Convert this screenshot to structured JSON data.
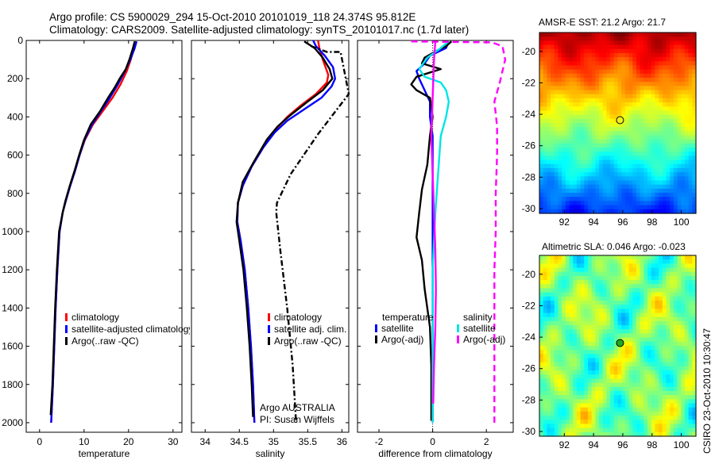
{
  "header": {
    "line1": "Argo profile: CS 5900029_294 15-Oct-2010 20101019_118 24.374S 95.812E",
    "line2": "Climatology: CARS2009. Satellite-adjusted climatology: synTS_20101017.nc (1.7d later)"
  },
  "footer_stamp": "CSIRO 23-Oct-2010 10:30:47",
  "colors": {
    "climatology": "#ff0000",
    "satellite": "#0000ff",
    "argo": "#000000",
    "sal_satellite": "#00e5e5",
    "sal_argo": "#ff00ff"
  },
  "chart_data": [
    {
      "type": "line",
      "name": "temperature",
      "xlabel": "temperature",
      "ylabel": "",
      "xlim": [
        -3,
        32
      ],
      "ylim": [
        0,
        2050
      ],
      "y_reversed": true,
      "xticks": [
        0,
        10,
        20,
        30
      ],
      "yticks": [
        0,
        200,
        400,
        600,
        800,
        1000,
        1200,
        1400,
        1600,
        1800,
        2000
      ],
      "legend": [
        "climatology",
        "satellite-adjusted climatology",
        "Argo(..raw -QC)"
      ],
      "series": [
        {
          "name": "climatology",
          "color": "#ff0000",
          "dash": "",
          "points": [
            [
              21.6,
              5
            ],
            [
              21.2,
              40
            ],
            [
              20.5,
              100
            ],
            [
              19.6,
              160
            ],
            [
              18.2,
              230
            ],
            [
              16.4,
              300
            ],
            [
              14.2,
              370
            ],
            [
              12.0,
              440
            ],
            [
              10.2,
              520
            ],
            [
              9.0,
              600
            ],
            [
              8.0,
              680
            ],
            [
              6.9,
              760
            ],
            [
              5.9,
              840
            ],
            [
              5.2,
              900
            ],
            [
              4.5,
              1000
            ],
            [
              4.0,
              1200
            ],
            [
              3.6,
              1400
            ],
            [
              3.3,
              1600
            ],
            [
              3.0,
              1800
            ],
            [
              2.6,
              2000
            ]
          ]
        },
        {
          "name": "satellite-adjusted climatology",
          "color": "#0000ff",
          "dash": "",
          "points": [
            [
              21.8,
              5
            ],
            [
              21.4,
              40
            ],
            [
              20.4,
              100
            ],
            [
              19.2,
              160
            ],
            [
              17.6,
              230
            ],
            [
              15.8,
              300
            ],
            [
              13.8,
              370
            ],
            [
              11.8,
              440
            ],
            [
              10.1,
              520
            ],
            [
              9.0,
              600
            ],
            [
              8.0,
              680
            ],
            [
              6.9,
              760
            ],
            [
              5.9,
              840
            ],
            [
              5.2,
              900
            ],
            [
              4.5,
              1000
            ],
            [
              4.0,
              1200
            ],
            [
              3.6,
              1400
            ],
            [
              3.3,
              1600
            ],
            [
              3.0,
              1800
            ],
            [
              2.6,
              2000
            ]
          ]
        },
        {
          "name": "Argo(..raw -QC)",
          "color": "#000000",
          "dash": "",
          "points": [
            [
              21.4,
              5
            ],
            [
              21.0,
              40
            ],
            [
              20.2,
              100
            ],
            [
              19.4,
              150
            ],
            [
              18.0,
              200
            ],
            [
              16.8,
              250
            ],
            [
              15.4,
              300
            ],
            [
              13.6,
              370
            ],
            [
              11.5,
              440
            ],
            [
              10.0,
              520
            ],
            [
              8.9,
              600
            ],
            [
              7.9,
              680
            ],
            [
              6.8,
              760
            ],
            [
              5.8,
              840
            ],
            [
              5.2,
              900
            ],
            [
              4.4,
              1000
            ],
            [
              3.9,
              1200
            ],
            [
              3.5,
              1400
            ],
            [
              3.2,
              1600
            ],
            [
              2.9,
              1800
            ],
            [
              2.5,
              1960
            ]
          ]
        }
      ]
    },
    {
      "type": "line",
      "name": "salinity",
      "xlabel": "salinity",
      "xlim": [
        33.8,
        36.1
      ],
      "ylim": [
        0,
        2050
      ],
      "y_reversed": true,
      "xticks": [
        34,
        34.5,
        35,
        35.5,
        36
      ],
      "xticklabels": [
        "34",
        "34.5",
        "35",
        "35.5",
        "36"
      ],
      "legend": [
        "climatology",
        "satellite adj. clim.",
        "Argo(..raw -QC)"
      ],
      "annotation": [
        "Argo AUSTRALIA",
        "PI: Susan Wijffels"
      ],
      "series": [
        {
          "name": "climatology",
          "color": "#ff0000",
          "dash": "",
          "points": [
            [
              35.65,
              0
            ],
            [
              35.67,
              40
            ],
            [
              35.72,
              100
            ],
            [
              35.8,
              180
            ],
            [
              35.78,
              220
            ],
            [
              35.62,
              280
            ],
            [
              35.4,
              340
            ],
            [
              35.2,
              400
            ],
            [
              35.02,
              470
            ],
            [
              34.85,
              560
            ],
            [
              34.68,
              660
            ],
            [
              34.55,
              760
            ],
            [
              34.48,
              850
            ],
            [
              34.47,
              950
            ],
            [
              34.52,
              1050
            ],
            [
              34.58,
              1200
            ],
            [
              34.63,
              1400
            ],
            [
              34.67,
              1600
            ],
            [
              34.7,
              1800
            ],
            [
              34.72,
              2000
            ]
          ]
        },
        {
          "name": "satellite adj. clim.",
          "color": "#0000ff",
          "dash": "",
          "points": [
            [
              35.58,
              0
            ],
            [
              35.62,
              30
            ],
            [
              35.75,
              80
            ],
            [
              35.87,
              140
            ],
            [
              35.9,
              200
            ],
            [
              35.85,
              240
            ],
            [
              35.7,
              300
            ],
            [
              35.45,
              360
            ],
            [
              35.2,
              420
            ],
            [
              35.02,
              480
            ],
            [
              34.85,
              560
            ],
            [
              34.68,
              660
            ],
            [
              34.55,
              760
            ],
            [
              34.48,
              850
            ],
            [
              34.47,
              950
            ],
            [
              34.52,
              1050
            ],
            [
              34.58,
              1200
            ],
            [
              34.63,
              1400
            ],
            [
              34.67,
              1600
            ],
            [
              34.7,
              1800
            ],
            [
              34.72,
              2000
            ]
          ]
        },
        {
          "name": "Argo(..raw -QC)",
          "color": "#000000",
          "dash": "",
          "points": [
            [
              35.45,
              5
            ],
            [
              35.6,
              40
            ],
            [
              35.72,
              90
            ],
            [
              35.82,
              150
            ],
            [
              35.86,
              200
            ],
            [
              35.72,
              260
            ],
            [
              35.5,
              320
            ],
            [
              35.25,
              390
            ],
            [
              35.06,
              450
            ],
            [
              34.9,
              520
            ],
            [
              34.72,
              630
            ],
            [
              34.55,
              740
            ],
            [
              34.48,
              850
            ],
            [
              34.46,
              950
            ],
            [
              34.5,
              1050
            ],
            [
              34.56,
              1200
            ],
            [
              34.61,
              1400
            ],
            [
              34.65,
              1600
            ],
            [
              34.68,
              1800
            ],
            [
              34.7,
              1970
            ]
          ]
        },
        {
          "name": "Argo raw (dash-dot)",
          "color": "#000000",
          "dash": "7,3,2,3",
          "points": [
            [
              35.55,
              30
            ],
            [
              35.78,
              60
            ],
            [
              35.98,
              60
            ],
            [
              36.1,
              280
            ],
            [
              35.65,
              490
            ],
            [
              35.25,
              700
            ],
            [
              35.05,
              850
            ],
            [
              35.04,
              900
            ],
            [
              35.1,
              1100
            ],
            [
              35.2,
              1400
            ],
            [
              35.28,
              1700
            ],
            [
              35.33,
              2000
            ]
          ]
        }
      ]
    },
    {
      "type": "line",
      "name": "difference",
      "xlabel": "difference from climatology",
      "xlim": [
        -2.8,
        3.0
      ],
      "ylim": [
        0,
        2050
      ],
      "y_reversed": true,
      "xticks": [
        -2,
        0,
        2
      ],
      "legend": {
        "temperature": [
          "satellite",
          "Argo(-adj)"
        ],
        "salinity": [
          "satellite",
          "Argo(-adj)"
        ]
      },
      "series": [
        {
          "name": "temperature satellite",
          "color": "#0000ff",
          "dash": "",
          "points": [
            [
              0.6,
              5
            ],
            [
              0.5,
              40
            ],
            [
              -0.1,
              80
            ],
            [
              -0.3,
              120
            ],
            [
              -0.6,
              160
            ],
            [
              -0.5,
              200
            ],
            [
              -0.3,
              260
            ],
            [
              -0.1,
              320
            ],
            [
              -0.1,
              400
            ],
            [
              0.0,
              500
            ],
            [
              0,
              800
            ],
            [
              0,
              1000
            ],
            [
              0,
              2000
            ]
          ]
        },
        {
          "name": "temperature Argo(-adj)",
          "color": "#000000",
          "dash": "",
          "points": [
            [
              0.7,
              5
            ],
            [
              0.5,
              30
            ],
            [
              0.2,
              50
            ],
            [
              -0.3,
              90
            ],
            [
              -0.4,
              120
            ],
            [
              0.3,
              150
            ],
            [
              -0.6,
              190
            ],
            [
              -0.8,
              230
            ],
            [
              -0.6,
              260
            ],
            [
              -0.1,
              300
            ],
            [
              0.0,
              400
            ],
            [
              -0.1,
              500
            ],
            [
              -0.2,
              650
            ],
            [
              -0.4,
              780
            ],
            [
              -0.5,
              900
            ],
            [
              -0.6,
              1030
            ],
            [
              -0.4,
              1150
            ],
            [
              -0.3,
              1300
            ],
            [
              -0.1,
              1500
            ],
            [
              -0.05,
              1700
            ],
            [
              -0.05,
              1900
            ],
            [
              -0.05,
              1990
            ]
          ]
        },
        {
          "name": "salinity satellite",
          "color": "#00e5e5",
          "dash": "",
          "points": [
            [
              0.6,
              5
            ],
            [
              0.3,
              40
            ],
            [
              -0.2,
              90
            ],
            [
              -0.5,
              150
            ],
            [
              -0.3,
              190
            ],
            [
              0.3,
              220
            ],
            [
              0.5,
              260
            ],
            [
              0.6,
              320
            ],
            [
              0.5,
              400
            ],
            [
              0.3,
              500
            ],
            [
              0.2,
              700
            ],
            [
              0.1,
              900
            ],
            [
              0.0,
              1200
            ],
            [
              0,
              1500
            ],
            [
              0,
              2000
            ]
          ]
        },
        {
          "name": "salinity Argo(-adj)",
          "color": "#ff00ff",
          "dash": "",
          "points": [
            [
              0.1,
              5
            ],
            [
              0.05,
              100
            ],
            [
              0.0,
              300
            ],
            [
              -0.05,
              500
            ],
            [
              0.0,
              700
            ],
            [
              0.05,
              900
            ],
            [
              0.1,
              1100
            ],
            [
              0.12,
              1300
            ],
            [
              0.1,
              1500
            ],
            [
              0.05,
              1700
            ],
            [
              0.02,
              1900
            ]
          ]
        },
        {
          "name": "Argo raw salinity diff (dashed)",
          "color": "#ff00ff",
          "dash": "8,5",
          "points": [
            [
              -0.8,
              5
            ],
            [
              0.8,
              8
            ],
            [
              2.2,
              10
            ],
            [
              2.6,
              30
            ],
            [
              2.7,
              100
            ],
            [
              2.5,
              220
            ],
            [
              2.3,
              320
            ],
            [
              2.4,
              450
            ],
            [
              2.4,
              600
            ],
            [
              2.35,
              800
            ],
            [
              2.35,
              1000
            ],
            [
              2.3,
              1200
            ],
            [
              2.3,
              1400
            ],
            [
              2.3,
              1600
            ],
            [
              2.3,
              1800
            ],
            [
              2.3,
              2000
            ]
          ]
        }
      ]
    },
    {
      "type": "heatmap",
      "name": "AMSR-E SST map",
      "title": "AMSR-E SST: 21.2  Argo: 21.7",
      "xlim": [
        90.3,
        101.0
      ],
      "ylim": [
        -30.3,
        -18.8
      ],
      "xticks": [
        92,
        94,
        96,
        98,
        100
      ],
      "yticks": [
        -20,
        -22,
        -24,
        -26,
        -28,
        -30
      ],
      "marker": {
        "lon": 95.812,
        "lat": -24.374,
        "fill": "#f0f020"
      }
    },
    {
      "type": "heatmap",
      "name": "Altimetric SLA map",
      "title": "Altimetric SLA: 0.046  Argo: -0.023",
      "xlim": [
        90.3,
        101.0
      ],
      "ylim": [
        -30.3,
        -18.8
      ],
      "xticks": [
        92,
        94,
        96,
        98,
        100
      ],
      "yticks": [
        -20,
        -22,
        -24,
        -26,
        -28,
        -30
      ],
      "marker": {
        "lon": 95.812,
        "lat": -24.374,
        "fill": "#22aa22"
      }
    }
  ]
}
